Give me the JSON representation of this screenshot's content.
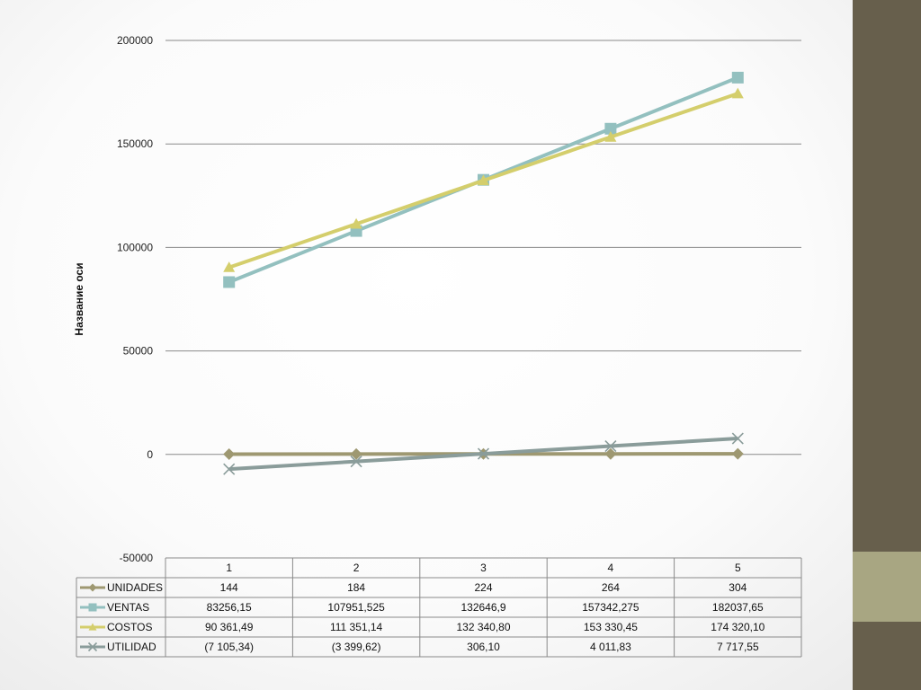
{
  "chart_data": {
    "type": "line",
    "ylabel": "Название оси",
    "ylim": [
      -50000,
      200000
    ],
    "yticks": [
      -50000,
      0,
      50000,
      100000,
      150000,
      200000
    ],
    "ytick_labels": [
      "-50000",
      "0",
      "50000",
      "100000",
      "150000",
      "200000"
    ],
    "grid": true,
    "legend": "data-table",
    "categories": [
      "1",
      "2",
      "3",
      "4",
      "5"
    ],
    "series": [
      {
        "name": "UNIDADES",
        "marker": "diamond",
        "color": "#9e9871",
        "values": [
          144,
          184,
          224,
          264,
          304
        ],
        "labels": [
          "144",
          "184",
          "224",
          "264",
          "304"
        ]
      },
      {
        "name": "VENTAS",
        "marker": "square",
        "color": "#93c0bf",
        "values": [
          83256.15,
          107951.525,
          132646.9,
          157342.275,
          182037.65
        ],
        "labels": [
          "83256,15",
          "107951,525",
          "132646,9",
          "157342,275",
          "182037,65"
        ]
      },
      {
        "name": "COSTOS",
        "marker": "triangle",
        "color": "#d4ce6c",
        "values": [
          90361.49,
          111351.14,
          132340.8,
          153330.45,
          174320.1
        ],
        "labels": [
          "90 361,49",
          "111 351,14",
          "132 340,80",
          "153 330,45",
          "174 320,10"
        ]
      },
      {
        "name": "UTILIDAD",
        "marker": "x",
        "color": "#8a9c9a",
        "values": [
          -7105.34,
          -3399.62,
          306.1,
          4011.83,
          7717.55
        ],
        "labels": [
          "(7 105,34)",
          "(3 399,62)",
          "306,10",
          "4 011,83",
          "7 717,55"
        ]
      }
    ]
  },
  "theme": {
    "side_bar_color": "#675f4c",
    "side_accent_color": "#a8a682"
  }
}
